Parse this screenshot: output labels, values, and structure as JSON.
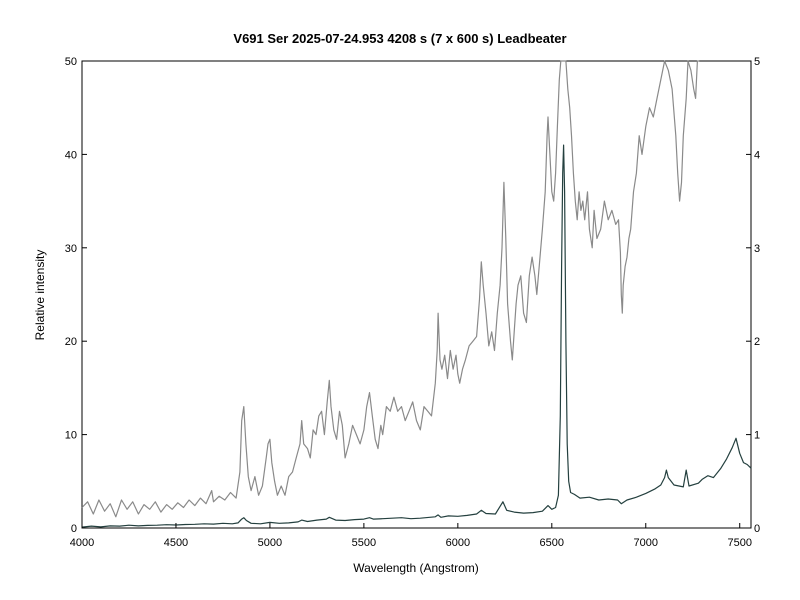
{
  "chart_data": {
    "type": "line",
    "title": "V691 Ser  2025-07-24.953  4208 s (7 x 600 s)  Leadbeater",
    "xlabel": "Wavelength (Angstrom)",
    "ylabel": "Relative intensity",
    "xlim": [
      4000,
      7560
    ],
    "ylim": [
      0,
      50
    ],
    "y2lim": [
      0,
      5
    ],
    "x_ticks": [
      "4000",
      "4500",
      "5000",
      "5500",
      "6000",
      "6500",
      "7000",
      "7500"
    ],
    "y_ticks": [
      "0",
      "10",
      "20",
      "30",
      "40",
      "50"
    ],
    "y2_ticks": [
      "0",
      "1",
      "2",
      "3",
      "4",
      "5"
    ],
    "grid": false,
    "series": [
      {
        "axis": "right",
        "color": "#8a8a8a",
        "points": [
          [
            4000,
            0.22
          ],
          [
            4030,
            0.28
          ],
          [
            4060,
            0.15
          ],
          [
            4090,
            0.3
          ],
          [
            4120,
            0.18
          ],
          [
            4150,
            0.26
          ],
          [
            4180,
            0.12
          ],
          [
            4210,
            0.3
          ],
          [
            4240,
            0.2
          ],
          [
            4270,
            0.28
          ],
          [
            4300,
            0.15
          ],
          [
            4330,
            0.25
          ],
          [
            4360,
            0.2
          ],
          [
            4390,
            0.28
          ],
          [
            4420,
            0.17
          ],
          [
            4450,
            0.25
          ],
          [
            4480,
            0.2
          ],
          [
            4510,
            0.27
          ],
          [
            4540,
            0.22
          ],
          [
            4570,
            0.3
          ],
          [
            4600,
            0.24
          ],
          [
            4630,
            0.32
          ],
          [
            4660,
            0.26
          ],
          [
            4690,
            0.4
          ],
          [
            4700,
            0.28
          ],
          [
            4730,
            0.34
          ],
          [
            4760,
            0.3
          ],
          [
            4790,
            0.38
          ],
          [
            4820,
            0.32
          ],
          [
            4840,
            0.6
          ],
          [
            4850,
            1.15
          ],
          [
            4861,
            1.3
          ],
          [
            4872,
            0.9
          ],
          [
            4885,
            0.55
          ],
          [
            4900,
            0.4
          ],
          [
            4920,
            0.55
          ],
          [
            4940,
            0.35
          ],
          [
            4960,
            0.45
          ],
          [
            4980,
            0.75
          ],
          [
            4990,
            0.9
          ],
          [
            5000,
            0.95
          ],
          [
            5010,
            0.7
          ],
          [
            5025,
            0.5
          ],
          [
            5040,
            0.35
          ],
          [
            5060,
            0.45
          ],
          [
            5080,
            0.35
          ],
          [
            5100,
            0.55
          ],
          [
            5120,
            0.6
          ],
          [
            5140,
            0.75
          ],
          [
            5160,
            0.9
          ],
          [
            5169,
            1.15
          ],
          [
            5180,
            0.9
          ],
          [
            5200,
            0.85
          ],
          [
            5215,
            0.75
          ],
          [
            5230,
            1.05
          ],
          [
            5245,
            1.0
          ],
          [
            5260,
            1.2
          ],
          [
            5275,
            1.25
          ],
          [
            5290,
            1.0
          ],
          [
            5305,
            1.35
          ],
          [
            5316,
            1.58
          ],
          [
            5325,
            1.3
          ],
          [
            5340,
            1.05
          ],
          [
            5355,
            0.95
          ],
          [
            5370,
            1.25
          ],
          [
            5385,
            1.1
          ],
          [
            5400,
            0.75
          ],
          [
            5420,
            0.9
          ],
          [
            5440,
            1.1
          ],
          [
            5460,
            1.0
          ],
          [
            5480,
            0.9
          ],
          [
            5500,
            1.05
          ],
          [
            5515,
            1.3
          ],
          [
            5530,
            1.45
          ],
          [
            5545,
            1.2
          ],
          [
            5560,
            0.95
          ],
          [
            5575,
            0.85
          ],
          [
            5590,
            1.1
          ],
          [
            5600,
            1.0
          ],
          [
            5620,
            1.3
          ],
          [
            5640,
            1.25
          ],
          [
            5660,
            1.4
          ],
          [
            5680,
            1.25
          ],
          [
            5700,
            1.3
          ],
          [
            5720,
            1.15
          ],
          [
            5740,
            1.25
          ],
          [
            5760,
            1.35
          ],
          [
            5780,
            1.15
          ],
          [
            5800,
            1.05
          ],
          [
            5820,
            1.3
          ],
          [
            5840,
            1.25
          ],
          [
            5860,
            1.2
          ],
          [
            5880,
            1.55
          ],
          [
            5890,
            1.9
          ],
          [
            5895,
            2.3
          ],
          [
            5905,
            1.8
          ],
          [
            5915,
            1.7
          ],
          [
            5930,
            1.85
          ],
          [
            5945,
            1.6
          ],
          [
            5960,
            1.9
          ],
          [
            5975,
            1.7
          ],
          [
            5990,
            1.85
          ],
          [
            6000,
            1.65
          ],
          [
            6010,
            1.55
          ],
          [
            6025,
            1.7
          ],
          [
            6040,
            1.8
          ],
          [
            6060,
            1.95
          ],
          [
            6080,
            2.0
          ],
          [
            6100,
            2.05
          ],
          [
            6115,
            2.45
          ],
          [
            6125,
            2.85
          ],
          [
            6135,
            2.6
          ],
          [
            6150,
            2.3
          ],
          [
            6165,
            1.95
          ],
          [
            6180,
            2.1
          ],
          [
            6195,
            1.9
          ],
          [
            6210,
            2.3
          ],
          [
            6225,
            2.6
          ],
          [
            6235,
            3.0
          ],
          [
            6245,
            3.7
          ],
          [
            6255,
            3.1
          ],
          [
            6265,
            2.4
          ],
          [
            6280,
            2.0
          ],
          [
            6290,
            1.8
          ],
          [
            6300,
            2.1
          ],
          [
            6310,
            2.4
          ],
          [
            6320,
            2.6
          ],
          [
            6335,
            2.7
          ],
          [
            6350,
            2.3
          ],
          [
            6365,
            2.2
          ],
          [
            6380,
            2.7
          ],
          [
            6395,
            2.9
          ],
          [
            6410,
            2.7
          ],
          [
            6420,
            2.5
          ],
          [
            6435,
            2.85
          ],
          [
            6450,
            3.2
          ],
          [
            6465,
            3.6
          ],
          [
            6475,
            4.2
          ],
          [
            6480,
            4.4
          ],
          [
            6490,
            4.0
          ],
          [
            6500,
            3.6
          ],
          [
            6510,
            3.5
          ],
          [
            6520,
            3.8
          ],
          [
            6530,
            4.3
          ],
          [
            6540,
            4.8
          ],
          [
            6548,
            5.0
          ],
          [
            6555,
            5.0
          ],
          [
            6565,
            5.0
          ],
          [
            6575,
            5.0
          ],
          [
            6585,
            4.7
          ],
          [
            6595,
            4.5
          ],
          [
            6605,
            4.2
          ],
          [
            6615,
            3.8
          ],
          [
            6625,
            3.5
          ],
          [
            6635,
            3.3
          ],
          [
            6645,
            3.6
          ],
          [
            6655,
            3.4
          ],
          [
            6665,
            3.5
          ],
          [
            6675,
            3.3
          ],
          [
            6690,
            3.6
          ],
          [
            6700,
            3.2
          ],
          [
            6715,
            3.0
          ],
          [
            6725,
            3.4
          ],
          [
            6740,
            3.1
          ],
          [
            6760,
            3.2
          ],
          [
            6780,
            3.5
          ],
          [
            6800,
            3.3
          ],
          [
            6820,
            3.4
          ],
          [
            6840,
            3.25
          ],
          [
            6855,
            3.3
          ],
          [
            6865,
            2.95
          ],
          [
            6870,
            2.5
          ],
          [
            6875,
            2.3
          ],
          [
            6880,
            2.6
          ],
          [
            6890,
            2.8
          ],
          [
            6900,
            2.9
          ],
          [
            6910,
            3.1
          ],
          [
            6920,
            3.2
          ],
          [
            6935,
            3.6
          ],
          [
            6950,
            3.8
          ],
          [
            6965,
            4.2
          ],
          [
            6980,
            4.0
          ],
          [
            7000,
            4.3
          ],
          [
            7020,
            4.5
          ],
          [
            7040,
            4.4
          ],
          [
            7060,
            4.6
          ],
          [
            7080,
            4.8
          ],
          [
            7100,
            5.0
          ],
          [
            7120,
            4.9
          ],
          [
            7140,
            4.7
          ],
          [
            7160,
            4.2
          ],
          [
            7170,
            3.8
          ],
          [
            7180,
            3.5
          ],
          [
            7190,
            3.7
          ],
          [
            7200,
            4.2
          ],
          [
            7215,
            4.6
          ],
          [
            7225,
            5.0
          ],
          [
            7240,
            4.9
          ],
          [
            7255,
            4.7
          ],
          [
            7265,
            4.6
          ],
          [
            7275,
            5.0
          ],
          [
            7285,
            5.0
          ]
        ]
      },
      {
        "axis": "left",
        "color": "#24403f",
        "points": [
          [
            4000,
            0.1
          ],
          [
            4050,
            0.2
          ],
          [
            4100,
            0.12
          ],
          [
            4150,
            0.22
          ],
          [
            4200,
            0.2
          ],
          [
            4250,
            0.3
          ],
          [
            4300,
            0.22
          ],
          [
            4350,
            0.28
          ],
          [
            4400,
            0.3
          ],
          [
            4450,
            0.35
          ],
          [
            4500,
            0.32
          ],
          [
            4550,
            0.38
          ],
          [
            4600,
            0.4
          ],
          [
            4650,
            0.45
          ],
          [
            4700,
            0.42
          ],
          [
            4750,
            0.5
          ],
          [
            4800,
            0.45
          ],
          [
            4830,
            0.55
          ],
          [
            4850,
            0.95
          ],
          [
            4861,
            1.1
          ],
          [
            4875,
            0.8
          ],
          [
            4900,
            0.5
          ],
          [
            4950,
            0.45
          ],
          [
            5000,
            0.6
          ],
          [
            5050,
            0.5
          ],
          [
            5100,
            0.55
          ],
          [
            5150,
            0.65
          ],
          [
            5169,
            0.85
          ],
          [
            5200,
            0.7
          ],
          [
            5250,
            0.85
          ],
          [
            5300,
            0.95
          ],
          [
            5316,
            1.15
          ],
          [
            5350,
            0.85
          ],
          [
            5400,
            0.8
          ],
          [
            5450,
            0.9
          ],
          [
            5500,
            0.95
          ],
          [
            5530,
            1.1
          ],
          [
            5550,
            0.95
          ],
          [
            5600,
            1.0
          ],
          [
            5650,
            1.05
          ],
          [
            5700,
            1.1
          ],
          [
            5750,
            1.0
          ],
          [
            5800,
            1.05
          ],
          [
            5850,
            1.15
          ],
          [
            5880,
            1.2
          ],
          [
            5895,
            1.4
          ],
          [
            5910,
            1.15
          ],
          [
            5950,
            1.3
          ],
          [
            6000,
            1.25
          ],
          [
            6050,
            1.35
          ],
          [
            6100,
            1.5
          ],
          [
            6125,
            1.9
          ],
          [
            6150,
            1.55
          ],
          [
            6200,
            1.5
          ],
          [
            6240,
            2.8
          ],
          [
            6260,
            1.9
          ],
          [
            6300,
            1.7
          ],
          [
            6350,
            1.6
          ],
          [
            6400,
            1.65
          ],
          [
            6450,
            1.8
          ],
          [
            6480,
            2.4
          ],
          [
            6500,
            2.0
          ],
          [
            6520,
            2.2
          ],
          [
            6535,
            3.5
          ],
          [
            6545,
            12.0
          ],
          [
            6552,
            28.0
          ],
          [
            6558,
            38.0
          ],
          [
            6563,
            41.0
          ],
          [
            6568,
            36.0
          ],
          [
            6575,
            20.0
          ],
          [
            6582,
            9.0
          ],
          [
            6590,
            5.0
          ],
          [
            6600,
            3.8
          ],
          [
            6620,
            3.6
          ],
          [
            6650,
            3.2
          ],
          [
            6700,
            3.3
          ],
          [
            6750,
            3.0
          ],
          [
            6800,
            3.1
          ],
          [
            6850,
            3.0
          ],
          [
            6870,
            2.6
          ],
          [
            6900,
            3.0
          ],
          [
            6950,
            3.3
          ],
          [
            7000,
            3.7
          ],
          [
            7050,
            4.2
          ],
          [
            7080,
            4.6
          ],
          [
            7100,
            5.4
          ],
          [
            7110,
            6.2
          ],
          [
            7120,
            5.4
          ],
          [
            7150,
            4.6
          ],
          [
            7200,
            4.4
          ],
          [
            7215,
            6.2
          ],
          [
            7230,
            4.5
          ],
          [
            7280,
            4.8
          ],
          [
            7300,
            5.2
          ],
          [
            7330,
            5.6
          ],
          [
            7360,
            5.4
          ],
          [
            7400,
            6.4
          ],
          [
            7430,
            7.4
          ],
          [
            7460,
            8.6
          ],
          [
            7480,
            9.6
          ],
          [
            7500,
            8.0
          ],
          [
            7520,
            7.0
          ],
          [
            7540,
            6.8
          ],
          [
            7560,
            6.4
          ]
        ]
      }
    ]
  }
}
